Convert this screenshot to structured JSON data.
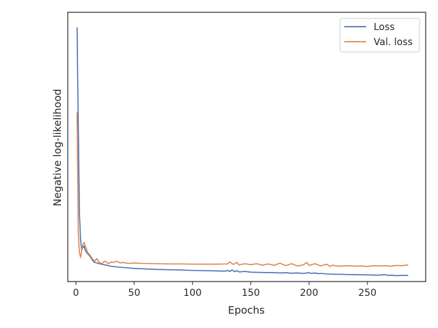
{
  "chart_data": {
    "type": "line",
    "title": "",
    "xlabel": "Epochs",
    "ylabel": "Negative log-likelihood",
    "xlim": [
      -7,
      300
    ],
    "ylim": [
      0,
      1
    ],
    "x_ticks": [
      0,
      50,
      100,
      150,
      200,
      250
    ],
    "x_tick_labels": [
      "0",
      "50",
      "100",
      "150",
      "200",
      "250"
    ],
    "y_tick_labels_visible": false,
    "grid": false,
    "legend_position": "top-right",
    "series": [
      {
        "name": "Loss",
        "color": "#4c72b0",
        "x": [
          1,
          2,
          3,
          4,
          5,
          6,
          7,
          8,
          9,
          10,
          12,
          14,
          16,
          18,
          20,
          25,
          30,
          35,
          40,
          50,
          60,
          70,
          80,
          90,
          100,
          110,
          120,
          128,
          130,
          132,
          134,
          136,
          138,
          140,
          145,
          150,
          160,
          170,
          175,
          180,
          185,
          190,
          195,
          200,
          202,
          205,
          208,
          210,
          215,
          220,
          230,
          240,
          250,
          260,
          265,
          268,
          270,
          275,
          280,
          285
        ],
        "values": [
          1.0,
          0.62,
          0.26,
          0.15,
          0.11,
          0.12,
          0.125,
          0.11,
          0.1,
          0.095,
          0.085,
          0.07,
          0.06,
          0.058,
          0.055,
          0.05,
          0.045,
          0.042,
          0.04,
          0.036,
          0.034,
          0.032,
          0.031,
          0.03,
          0.028,
          0.027,
          0.026,
          0.025,
          0.028,
          0.024,
          0.03,
          0.023,
          0.027,
          0.022,
          0.024,
          0.021,
          0.02,
          0.019,
          0.018,
          0.019,
          0.017,
          0.018,
          0.016,
          0.019,
          0.016,
          0.018,
          0.015,
          0.016,
          0.014,
          0.013,
          0.012,
          0.011,
          0.01,
          0.009,
          0.011,
          0.008,
          0.009,
          0.007,
          0.008,
          0.008
        ]
      },
      {
        "name": "Val. loss",
        "color": "#dd8452",
        "x": [
          1,
          2,
          3,
          4,
          5,
          6,
          7,
          8,
          9,
          10,
          12,
          14,
          16,
          18,
          20,
          22,
          25,
          28,
          30,
          32,
          35,
          38,
          40,
          45,
          50,
          55,
          60,
          70,
          80,
          90,
          100,
          110,
          120,
          130,
          132,
          135,
          138,
          140,
          145,
          150,
          155,
          160,
          165,
          170,
          175,
          180,
          185,
          190,
          195,
          198,
          200,
          205,
          210,
          215,
          218,
          220,
          225,
          230,
          235,
          240,
          245,
          250,
          255,
          260,
          265,
          270,
          275,
          280,
          285
        ],
        "values": [
          0.66,
          0.18,
          0.1,
          0.08,
          0.11,
          0.13,
          0.14,
          0.125,
          0.115,
          0.1,
          0.09,
          0.075,
          0.065,
          0.075,
          0.06,
          0.055,
          0.065,
          0.055,
          0.062,
          0.06,
          0.065,
          0.058,
          0.06,
          0.056,
          0.058,
          0.056,
          0.056,
          0.055,
          0.054,
          0.054,
          0.053,
          0.053,
          0.053,
          0.054,
          0.062,
          0.052,
          0.06,
          0.05,
          0.055,
          0.051,
          0.055,
          0.049,
          0.054,
          0.048,
          0.057,
          0.047,
          0.055,
          0.046,
          0.05,
          0.06,
          0.048,
          0.055,
          0.046,
          0.053,
          0.044,
          0.049,
          0.045,
          0.046,
          0.047,
          0.045,
          0.046,
          0.044,
          0.047,
          0.046,
          0.047,
          0.045,
          0.048,
          0.047,
          0.05
        ]
      }
    ]
  }
}
